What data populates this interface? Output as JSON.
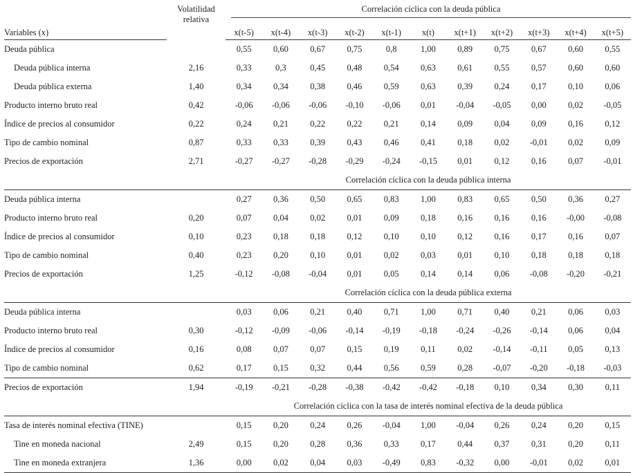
{
  "header": {
    "variables_label": "Variables (x)",
    "volatility_label_line1": "Volatilidad",
    "volatility_label_line2": "relativa",
    "group_title": "Correlación cíclica con la deuda pública",
    "lags": [
      "x(t-5)",
      "x(t-4)",
      "x(t-3)",
      "x(t-2)",
      "x(t-1)",
      "x(t)",
      "x(t+1)",
      "x(t+2)",
      "x(t+3)",
      "x(t+4)",
      "x(t+5)"
    ]
  },
  "sections": [
    {
      "title": "",
      "rows": [
        {
          "label": "Deuda pública",
          "indent": false,
          "vol": "",
          "values": [
            "0,55",
            "0,60",
            "0,67",
            "0,75",
            "0,8",
            "1,00",
            "0,89",
            "0,75",
            "0,67",
            "0,60",
            "0,55"
          ]
        },
        {
          "label": "Deuda pública interna",
          "indent": true,
          "vol": "2,16",
          "values": [
            "0,33",
            "0,3",
            "0,45",
            "0,48",
            "0,54",
            "0,63",
            "0,61",
            "0,55",
            "0,57",
            "0,60",
            "0,60"
          ]
        },
        {
          "label": "Deuda pública externa",
          "indent": true,
          "vol": "1,40",
          "values": [
            "0,34",
            "0,34",
            "0,38",
            "0,46",
            "0,59",
            "0,63",
            "0,39",
            "0,24",
            "0,17",
            "0,10",
            "0,06"
          ]
        },
        {
          "label": "Producto interno bruto real",
          "indent": false,
          "vol": "0,42",
          "values": [
            "-0,06",
            "-0,06",
            "-0,06",
            "-0,10",
            "-0,06",
            "0,01",
            "-0,04",
            "-0,05",
            "0,00",
            "0,02",
            "-0,05"
          ]
        },
        {
          "label": "Índice de precios al consumidor",
          "indent": false,
          "vol": "0,22",
          "values": [
            "0,24",
            "0,21",
            "0,22",
            "0,22",
            "0,21",
            "0,14",
            "0,09",
            "0,04",
            "0,09",
            "0,16",
            "0,12"
          ]
        },
        {
          "label": "Tipo de cambio nominal",
          "indent": false,
          "vol": "0,87",
          "values": [
            "0,33",
            "0,33",
            "0,39",
            "0,43",
            "0,46",
            "0,41",
            "0,18",
            "0,02",
            "-0,01",
            "0,02",
            "0,09"
          ]
        },
        {
          "label": "Precios de exportación",
          "indent": false,
          "vol": "2,71",
          "values": [
            "-0,27",
            "-0,27",
            "-0,28",
            "-0,29",
            "-0,24",
            "-0,15",
            "0,01",
            "0,12",
            "0,16",
            "0,07",
            "-0,01"
          ]
        }
      ]
    },
    {
      "title": "Correlación cíclica con la deuda pública interna",
      "rows": [
        {
          "label": "Deuda pública interna",
          "indent": false,
          "vol": "",
          "values": [
            "0,27",
            "0,36",
            "0,50",
            "0,65",
            "0,83",
            "1,00",
            "0,83",
            "0,65",
            "0,50",
            "0,36",
            "0,27"
          ]
        },
        {
          "label": "Producto interno bruto real",
          "indent": false,
          "vol": "0,20",
          "values": [
            "0,07",
            "0,04",
            "0,02",
            "0,01",
            "0,09",
            "0,18",
            "0,16",
            "0,16",
            "0,16",
            "-0,00",
            "-0,08"
          ]
        },
        {
          "label": "Índice de precios al consumidor",
          "indent": false,
          "vol": "0,10",
          "values": [
            "0,23",
            "0,18",
            "0,18",
            "0,12",
            "0,10",
            "0,10",
            "0,12",
            "0,16",
            "0,17",
            "0,16",
            "0,07"
          ]
        },
        {
          "label": "Tipo de cambio nominal",
          "indent": false,
          "vol": "0,40",
          "values": [
            "0,23",
            "0,20",
            "0,10",
            "0,01",
            "0,02",
            "0,03",
            "0,01",
            "0,10",
            "0,18",
            "0,18",
            "0,18"
          ]
        },
        {
          "label": "Precios de exportación",
          "indent": false,
          "vol": "1,25",
          "values": [
            "-0,12",
            "-0,08",
            "-0,04",
            "0,01",
            "0,05",
            "0,14",
            "0,14",
            "0,06",
            "-0,08",
            "-0,20",
            "-0,21"
          ]
        }
      ]
    },
    {
      "title": "Correlación cíclica con la deuda pública externa",
      "rows": [
        {
          "label": "Deuda pública interna",
          "indent": false,
          "vol": "",
          "values": [
            "0,03",
            "0,06",
            "0,21",
            "0,40",
            "0,71",
            "1,00",
            "0,71",
            "0,40",
            "0,21",
            "0,06",
            "0,03"
          ]
        },
        {
          "label": "Producto interno bruto real",
          "indent": false,
          "vol": "0,30",
          "values": [
            "-0,12",
            "-0,09",
            "-0,06",
            "-0,14",
            "-0,19",
            "-0,18",
            "-0,24",
            "-0,26",
            "-0,14",
            "0,06",
            "0,04"
          ]
        },
        {
          "label": "Índice de precios al consumidor",
          "indent": false,
          "vol": "0,16",
          "values": [
            "0,08",
            "0,07",
            "0,07",
            "0,15",
            "0,19",
            "0,11",
            "0,02",
            "-0,14",
            "-0,11",
            "0,05",
            "0,13"
          ]
        },
        {
          "label": "Tipo de cambio nominal",
          "indent": false,
          "vol": "0,62",
          "values": [
            "0,17",
            "0,15",
            "0,32",
            "0,44",
            "0,56",
            "0,59",
            "0,28",
            "-0,07",
            "-0,20",
            "-0,18",
            "-0,03"
          ]
        },
        {
          "label": "Precios de exportación",
          "indent": false,
          "vol": "1,94",
          "values": [
            "-0,19",
            "-0,21",
            "-0,28",
            "-0,38",
            "-0,42",
            "-0,42",
            "-0,18",
            "0,10",
            "0,34",
            "0,30",
            "0,11"
          ]
        }
      ]
    },
    {
      "title": "Correlación cíclica con la tasa de interés nominal efectiva de la deuda pública",
      "rows": [
        {
          "label": "Tasa de interés nominal efectiva (TINE)",
          "indent": false,
          "vol": "",
          "values": [
            "0,15",
            "0,20",
            "0,24",
            "0,26",
            "-0,04",
            "1,00",
            "-0,04",
            "0,26",
            "0,24",
            "0,20",
            "0,15"
          ]
        },
        {
          "label": "Tine en moneda nacional",
          "indent": true,
          "vol": "2,49",
          "values": [
            "0,15",
            "0,20",
            "0,28",
            "0,36",
            "0,33",
            "0,17",
            "0,44",
            "0,37",
            "0,31",
            "0,20",
            "0,11"
          ]
        },
        {
          "label": "Tine en moneda extranjera",
          "indent": true,
          "vol": "1,36",
          "values": [
            "0,00",
            "0,02",
            "0,04",
            "0,03",
            "-0,49",
            "0,83",
            "-0,32",
            "0,00",
            "-0,01",
            "0,02",
            "0,01"
          ]
        }
      ]
    }
  ]
}
